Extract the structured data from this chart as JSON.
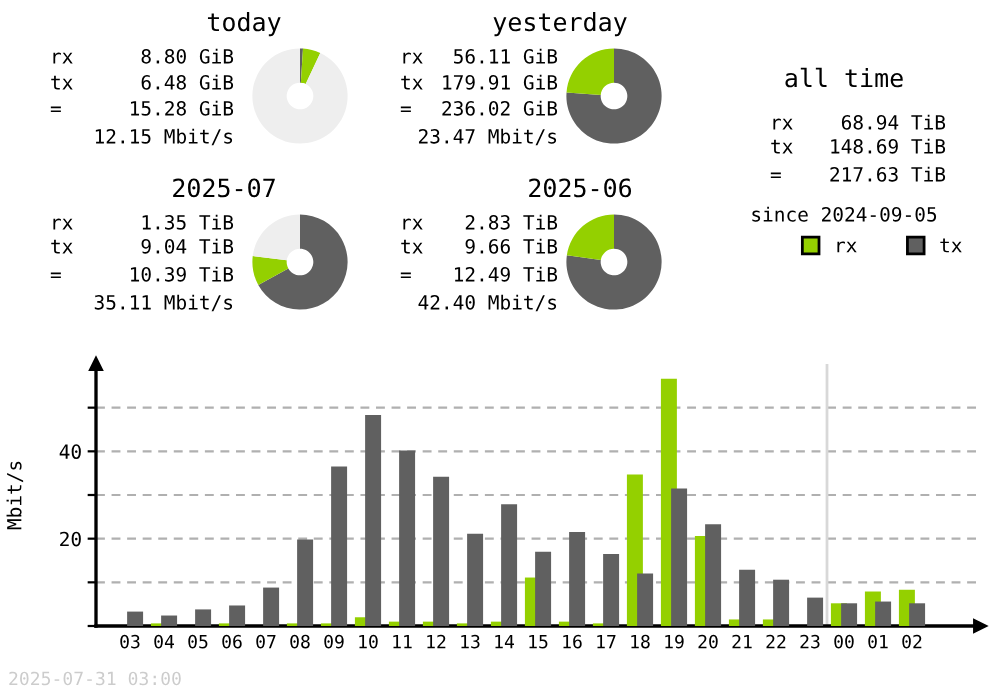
{
  "chart_data": [
    {
      "type": "donut",
      "title": "today",
      "categories": [
        null,
        null,
        null
      ],
      "values": [
        1,
        6,
        93
      ],
      "colors": [
        "#606060",
        "#94d000",
        "#eeeeee"
      ],
      "annotations": [
        "rx 8.80 GiB",
        "tx 6.48 GiB",
        "= 15.28 GiB",
        "12.15 Mbit/s"
      ]
    },
    {
      "type": "donut",
      "title": "yesterday",
      "categories": [
        null,
        null
      ],
      "values": [
        76.2,
        23.8
      ],
      "colors": [
        "#606060",
        "#94d000"
      ],
      "annotations": [
        "rx 56.11 GiB",
        "tx 179.91 GiB",
        "= 236.02 GiB",
        "23.47 Mbit/s"
      ]
    },
    {
      "type": "other",
      "title": "all time",
      "annotations": [
        "rx 68.94 TiB",
        "tx 148.69 TiB",
        "= 217.63 TiB",
        "since 2024-09-05"
      ]
    },
    {
      "type": "donut",
      "title": "2025-07",
      "categories": [
        null,
        null,
        null
      ],
      "values": [
        67,
        10,
        23
      ],
      "colors": [
        "#606060",
        "#94d000",
        "#eeeeee"
      ],
      "annotations": [
        "rx 1.35 TiB",
        "tx 9.04 TiB",
        "= 10.39 TiB",
        "35.11 Mbit/s"
      ]
    },
    {
      "type": "donut",
      "title": "2025-06",
      "categories": [
        null,
        null
      ],
      "values": [
        77.3,
        22.7
      ],
      "colors": [
        "#606060",
        "#94d000"
      ],
      "annotations": [
        "rx 2.83 TiB",
        "tx 9.66 TiB",
        "= 12.49 TiB",
        "42.40 Mbit/s"
      ]
    },
    {
      "type": "bar",
      "ylabel": "Mbit/s",
      "legend": "top right",
      "grid": "y",
      "categories": [
        "03",
        "04",
        "05",
        "06",
        "07",
        "08",
        "09",
        "10",
        "11",
        "12",
        "13",
        "14",
        "15",
        "16",
        "17",
        "18",
        "19",
        "20",
        "21",
        "22",
        "23",
        "00",
        "01",
        "02"
      ],
      "series": [
        {
          "name": "rx",
          "color": "#94d000",
          "values": [
            0,
            0.6,
            0,
            0.6,
            0,
            0.6,
            0.6,
            2.0,
            1.0,
            1.0,
            0.6,
            1.0,
            11.1,
            1.0,
            0.6,
            34.7,
            56.6,
            20.6,
            1.5,
            1.5,
            0,
            5.2,
            7.9,
            8.3
          ]
        },
        {
          "name": "tx",
          "color": "#606060",
          "values": [
            3.3,
            2.4,
            3.8,
            4.7,
            8.8,
            19.8,
            36.5,
            48.3,
            40.2,
            34.2,
            21.1,
            27.9,
            17.0,
            21.5,
            16.5,
            12.0,
            31.5,
            23.3,
            12.9,
            10.6,
            6.5,
            5.2,
            5.6,
            5.2
          ]
        }
      ],
      "ylim": [
        0,
        60
      ],
      "yticks": [
        {
          "value": 0,
          "label": null
        },
        {
          "value": 10,
          "label": null
        },
        20,
        {
          "value": 30,
          "label": null
        },
        40,
        {
          "value": 50,
          "label": null
        }
      ],
      "ref_lines": [
        {
          "axis": "x",
          "value": "00",
          "color": "#d8d8d8"
        }
      ],
      "annotations": [
        "2025-07-31 03:00"
      ]
    }
  ]
}
